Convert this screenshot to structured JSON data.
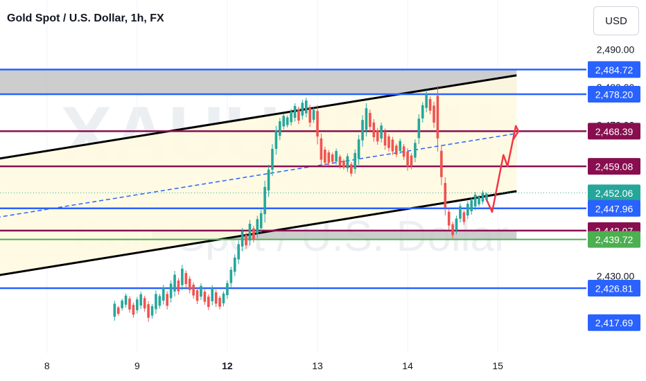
{
  "header": {
    "title": "Gold Spot / U.S. Dollar, 1h, FX",
    "currency_button": "USD"
  },
  "watermark": {
    "symbol": "XAUUSD, 1h",
    "description": "Gold Spot / U.S. Dollar"
  },
  "colors": {
    "blue": "#2962ff",
    "dark_red": "#880e4f",
    "green_label": "#4caf50",
    "candle_up": "#26a69a",
    "candle_down": "#ef5350",
    "channel_fill": "#fff9e0",
    "zone_fill": "#c4c4c4",
    "projection": "#f23645"
  },
  "chart_data": {
    "type": "candlestick",
    "symbol": "XAUUSD",
    "timeframe": "1h",
    "ylim": [
      2414,
      2497
    ],
    "x_ticks": [
      {
        "label": "8",
        "bar": -97,
        "bold": false
      },
      {
        "label": "9",
        "bar": -73,
        "bold": false
      },
      {
        "label": "12",
        "bar": -49,
        "bold": true
      },
      {
        "label": "13",
        "bar": -25,
        "bold": false
      },
      {
        "label": "14",
        "bar": -1,
        "bold": false
      },
      {
        "label": "15",
        "bar": 23,
        "bold": false
      }
    ],
    "y_ticks": [
      2490.0,
      2480.0,
      2470.0,
      2430.0
    ],
    "y_tick_labels": [
      "2,490.00",
      "2,480.00",
      "2,470.00",
      "2,430.00"
    ],
    "price_labels": [
      {
        "text": "2,484.72",
        "value": 2484.72,
        "color": "#2962ff"
      },
      {
        "text": "2,478.20",
        "value": 2478.2,
        "color": "#2962ff"
      },
      {
        "text": "2,468.39",
        "value": 2468.39,
        "color": "#880e4f"
      },
      {
        "text": "2,459.08",
        "value": 2459.08,
        "color": "#880e4f"
      },
      {
        "text": "2,452.06",
        "value": 2452.06,
        "color": "#26a69a"
      },
      {
        "text": "2,447.96",
        "value": 2447.96,
        "color": "#2962ff"
      },
      {
        "text": "2,442.07",
        "value": 2442.07,
        "color": "#880e4f"
      },
      {
        "text": "2,439.72",
        "value": 2439.72,
        "color": "#4caf50"
      },
      {
        "text": "2,426.81",
        "value": 2426.81,
        "color": "#2962ff"
      },
      {
        "text": "2,417.69",
        "value": 2417.69,
        "color": "#2962ff"
      }
    ],
    "horizontal_levels": [
      {
        "value": 2484.72,
        "color": "#2962ff"
      },
      {
        "value": 2478.2,
        "color": "#2962ff"
      },
      {
        "value": 2468.39,
        "color": "#880e4f"
      },
      {
        "value": 2459.08,
        "color": "#880e4f"
      },
      {
        "value": 2447.96,
        "color": "#2962ff"
      },
      {
        "value": 2442.07,
        "color": "#880e4f"
      },
      {
        "value": 2439.72,
        "color": "#4caf50"
      },
      {
        "value": 2426.81,
        "color": "#2962ff"
      }
    ],
    "zones": [
      {
        "from_bar": -125,
        "to_bar": 28,
        "low": 2478.2,
        "high": 2484.72
      },
      {
        "from_bar": -69,
        "to_bar": 28,
        "low": 2439.72,
        "high": 2442.07
      }
    ],
    "channel": {
      "upper": [
        [
          -125,
          2458.7
        ],
        [
          28,
          2483.2
        ]
      ],
      "lower": [
        [
          -125,
          2427.8
        ],
        [
          28,
          2452.5
        ]
      ],
      "mid": [
        [
          -125,
          2443.2
        ],
        [
          28,
          2467.8
        ]
      ]
    },
    "last_close": 2452.06,
    "projection": [
      [
        20,
        2450.3
      ],
      [
        21.5,
        2447.0
      ],
      [
        24.5,
        2462.1
      ],
      [
        25.6,
        2459.1
      ],
      [
        27.8,
        2469.8
      ],
      [
        28.5,
        2468.4
      ],
      [
        27.0,
        2466.0
      ]
    ],
    "candles": [
      [
        -79,
        2423.5,
        2418.2
      ],
      [
        -78,
        2422.1,
        2419.5
      ],
      [
        -77,
        2424.0,
        2420.9
      ],
      [
        -76,
        2425.4,
        2421.7
      ],
      [
        -75,
        2424.7,
        2420.3
      ],
      [
        -74,
        2423.0,
        2419.0
      ],
      [
        -73,
        2424.5,
        2420.1
      ],
      [
        -72,
        2425.9,
        2421.3
      ],
      [
        -71,
        2424.8,
        2420.6
      ],
      [
        -70,
        2423.4,
        2417.9
      ],
      [
        -69,
        2422.6,
        2418.8
      ],
      [
        -68,
        2426.2,
        2420.0
      ],
      [
        -67,
        2425.3,
        2421.4
      ],
      [
        -66,
        2427.7,
        2422.5
      ],
      [
        -65,
        2426.0,
        2421.2
      ],
      [
        -64,
        2428.9,
        2423.0
      ],
      [
        -63,
        2431.4,
        2424.6
      ],
      [
        -62,
        2429.5,
        2425.1
      ],
      [
        -61,
        2433.0,
        2426.3
      ],
      [
        -60,
        2431.5,
        2427.0
      ],
      [
        -59,
        2430.0,
        2425.4
      ],
      [
        -58,
        2428.4,
        2424.0
      ],
      [
        -57,
        2426.9,
        2422.6
      ],
      [
        -56,
        2428.1,
        2423.7
      ],
      [
        -55,
        2426.5,
        2422.4
      ],
      [
        -54,
        2425.2,
        2421.0
      ],
      [
        -53,
        2427.6,
        2422.3
      ],
      [
        -52,
        2426.4,
        2421.8
      ],
      [
        -51,
        2424.8,
        2421.2
      ],
      [
        -50,
        2426.0,
        2422.0
      ],
      [
        -49,
        2428.9,
        2424.0
      ],
      [
        -48,
        2432.5,
        2427.1
      ],
      [
        -47,
        2435.8,
        2430.0
      ],
      [
        -46,
        2439.4,
        2433.2
      ],
      [
        -45,
        2442.8,
        2436.6
      ],
      [
        -44,
        2441.6,
        2437.3
      ],
      [
        -43,
        2444.9,
        2438.1
      ],
      [
        -42,
        2443.3,
        2438.9
      ],
      [
        -41,
        2446.0,
        2440.1
      ],
      [
        -40,
        2447.6,
        2441.5
      ],
      [
        -39,
        2455.3,
        2444.2
      ],
      [
        -38,
        2459.5,
        2451.0
      ],
      [
        -37,
        2465.0,
        2456.5
      ],
      [
        -36,
        2469.8,
        2462.2
      ],
      [
        -35,
        2471.9,
        2466.0
      ],
      [
        -34,
        2473.1,
        2468.8
      ],
      [
        -33,
        2472.5,
        2469.4
      ],
      [
        -32,
        2474.3,
        2469.9
      ],
      [
        -31,
        2475.8,
        2471.0
      ],
      [
        -30,
        2474.9,
        2470.3
      ],
      [
        -29,
        2476.7,
        2471.5
      ],
      [
        -28,
        2477.3,
        2472.1
      ],
      [
        -27,
        2475.4,
        2469.5
      ],
      [
        -26,
        2474.7,
        2470.6
      ],
      [
        -25,
        2475.3,
        2464.9
      ],
      [
        -24,
        2467.8,
        2459.1
      ],
      [
        -23,
        2464.3,
        2459.0
      ],
      [
        -22,
        2463.4,
        2459.2
      ],
      [
        -21,
        2462.7,
        2459.7
      ],
      [
        -20,
        2463.8,
        2459.5
      ],
      [
        -19,
        2462.2,
        2458.5
      ],
      [
        -18,
        2461.0,
        2458.2
      ],
      [
        -17,
        2462.5,
        2457.6
      ],
      [
        -16,
        2460.2,
        2456.4
      ],
      [
        -15,
        2463.6,
        2457.1
      ],
      [
        -14,
        2467.4,
        2459.5
      ],
      [
        -13,
        2472.6,
        2464.3
      ],
      [
        -12,
        2475.8,
        2467.0
      ],
      [
        -11,
        2474.1,
        2468.4
      ],
      [
        -10,
        2471.6,
        2465.6
      ],
      [
        -9,
        2469.3,
        2464.8
      ],
      [
        -8,
        2470.7,
        2465.4
      ],
      [
        -7,
        2469.1,
        2463.5
      ],
      [
        -6,
        2467.7,
        2463.0
      ],
      [
        -5,
        2466.9,
        2462.1
      ],
      [
        -4,
        2465.1,
        2461.5
      ],
      [
        -3,
        2466.4,
        2462.4
      ],
      [
        -2,
        2465.0,
        2460.8
      ],
      [
        -1,
        2463.9,
        2457.9
      ],
      [
        0,
        2462.6,
        2458.3
      ],
      [
        1,
        2466.2,
        2460.2
      ],
      [
        2,
        2472.9,
        2465.0
      ],
      [
        3,
        2476.1,
        2470.7
      ],
      [
        4,
        2479.3,
        2473.4
      ],
      [
        5,
        2477.6,
        2472.9
      ],
      [
        6,
        2476.2,
        2469.3
      ],
      [
        7,
        2480.4,
        2463.0
      ],
      [
        8,
        2464.8,
        2454.1
      ],
      [
        9,
        2456.2,
        2446.1
      ],
      [
        10,
        2447.9,
        2442.3
      ],
      [
        11,
        2444.4,
        2440.0
      ],
      [
        12,
        2446.0,
        2441.2
      ],
      [
        13,
        2449.3,
        2444.2
      ],
      [
        14,
        2447.5,
        2443.6
      ],
      [
        15,
        2449.9,
        2445.1
      ],
      [
        16,
        2450.8,
        2446.3
      ],
      [
        17,
        2452.3,
        2447.5
      ],
      [
        18,
        2451.5,
        2448.4
      ],
      [
        19,
        2452.7,
        2449.0
      ],
      [
        20,
        2452.2,
        2449.7
      ]
    ]
  }
}
